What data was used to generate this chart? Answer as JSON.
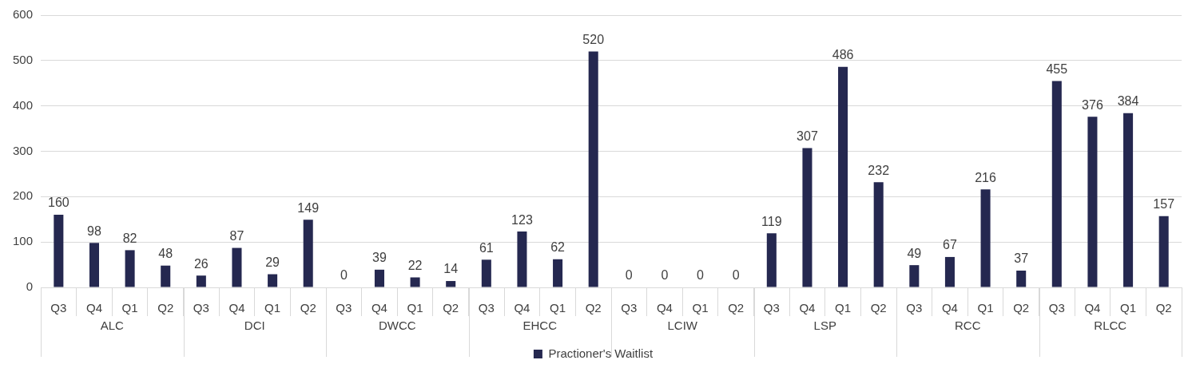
{
  "chart_data": {
    "type": "bar",
    "categories": [
      "Q3",
      "Q4",
      "Q1",
      "Q2",
      "Q3",
      "Q4",
      "Q1",
      "Q2",
      "Q3",
      "Q4",
      "Q1",
      "Q2",
      "Q3",
      "Q4",
      "Q1",
      "Q2",
      "Q3",
      "Q4",
      "Q1",
      "Q2",
      "Q3",
      "Q4",
      "Q1",
      "Q2",
      "Q3",
      "Q4",
      "Q1",
      "Q2",
      "Q3",
      "Q4",
      "Q1",
      "Q2"
    ],
    "series": [
      {
        "name": "Practioner's Waitlist",
        "color": "#252850",
        "values": [
          160,
          98,
          82,
          48,
          26,
          87,
          29,
          149,
          0,
          39,
          22,
          14,
          61,
          123,
          62,
          520,
          0,
          0,
          0,
          0,
          119,
          307,
          486,
          232,
          49,
          67,
          216,
          37,
          455,
          376,
          384,
          157
        ]
      }
    ],
    "annotations": [
      "ALC",
      "DCI",
      "DWCC",
      "EHCC",
      "LCIW",
      "LSP",
      "RCC",
      "RLCC"
    ],
    "ylim": [
      0,
      600
    ],
    "yticks": [
      0,
      100,
      200,
      300,
      400,
      500,
      600
    ],
    "grid": "y",
    "legend": "bottom",
    "data_labels": true
  }
}
